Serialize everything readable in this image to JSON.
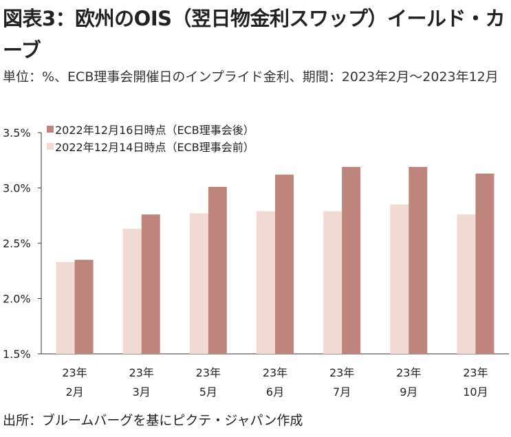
{
  "title": "図表3：欧州のOIS（翌日物金利スワップ）イールド・カーブ",
  "subtitle": "単位：%、ECB理事会開催日のインプライド金利、期間：2023年2月～2023年12月",
  "source": "出所：ブルームバーグを基にピクテ・ジャパン作成",
  "chart_data": {
    "type": "bar",
    "categories": [
      [
        "23年",
        "2月"
      ],
      [
        "23年",
        "3月"
      ],
      [
        "23年",
        "5月"
      ],
      [
        "23年",
        "6月"
      ],
      [
        "23年",
        "7月"
      ],
      [
        "23年",
        "9月"
      ],
      [
        "23年",
        "10月"
      ]
    ],
    "series": [
      {
        "name": "2022年12月14日時点（ECB理事会前）",
        "color": "#f1d9d4",
        "values": [
          2.33,
          2.63,
          2.77,
          2.79,
          2.79,
          2.85,
          2.76
        ]
      },
      {
        "name": "2022年12月16日時点（ECB理事会後）",
        "color": "#bd857c",
        "values": [
          2.35,
          2.76,
          3.01,
          3.12,
          3.19,
          3.19,
          3.13
        ]
      }
    ],
    "legend_order": [
      1,
      0
    ],
    "legend_position": "top-left",
    "ylim": [
      1.5,
      3.5
    ],
    "yticks": [
      1.5,
      2.0,
      2.5,
      3.0,
      3.5
    ],
    "ytick_labels": [
      "1.5%",
      "2.0%",
      "2.5%",
      "3.0%",
      "3.5%"
    ],
    "grid": false,
    "xlabel": "",
    "ylabel": ""
  }
}
